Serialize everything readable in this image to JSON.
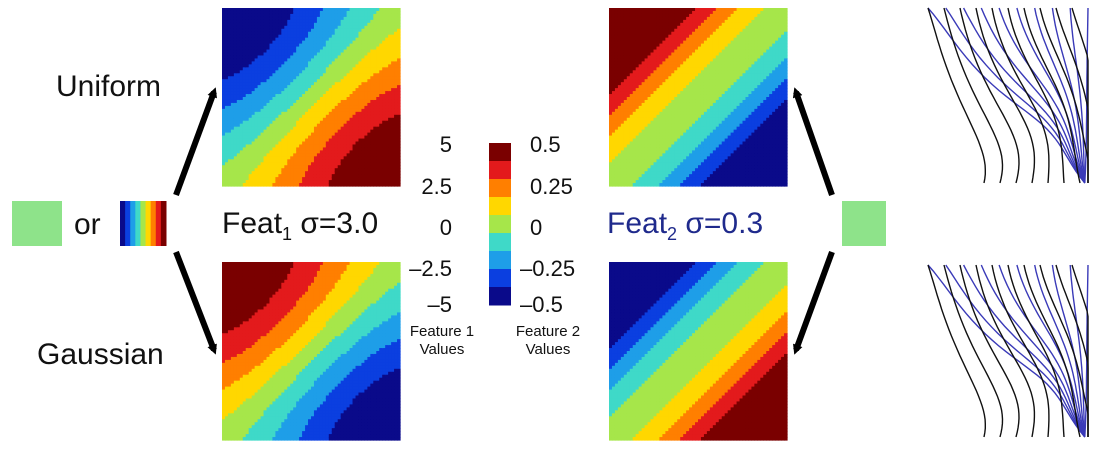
{
  "labels": {
    "uniform": "Uniform",
    "gaussian": "Gaussian",
    "or": "or",
    "feat1_name": "Feat",
    "feat1_sub": "1",
    "feat1_sigma": "σ=3.0",
    "feat2_name": "Feat",
    "feat2_sub": "2",
    "feat2_sigma": "σ=0.3",
    "feature1_caption_1": "Feature 1",
    "feature1_caption_2": "Values",
    "feature2_caption_1": "Feature 2",
    "feature2_caption_2": "Values"
  },
  "colorbar": {
    "feature1_ticks": [
      "5",
      "2.5",
      "0",
      "–2.5",
      "–5"
    ],
    "feature2_ticks": [
      "0.5",
      "0.25",
      "0",
      "–0.25",
      "–0.5"
    ],
    "colors": [
      "#7a0000",
      "#e31a1c",
      "#ff7f00",
      "#ffd700",
      "#a6e64a",
      "#3fd9c8",
      "#1e9ee8",
      "#0b3fe0",
      "#0a0a8a"
    ]
  },
  "colors": {
    "noise_swatch": "#8ee38a",
    "feat2_label": "#1f2a8c",
    "grid_blue": "#3a3ab8",
    "grid_black": "#111111"
  }
}
